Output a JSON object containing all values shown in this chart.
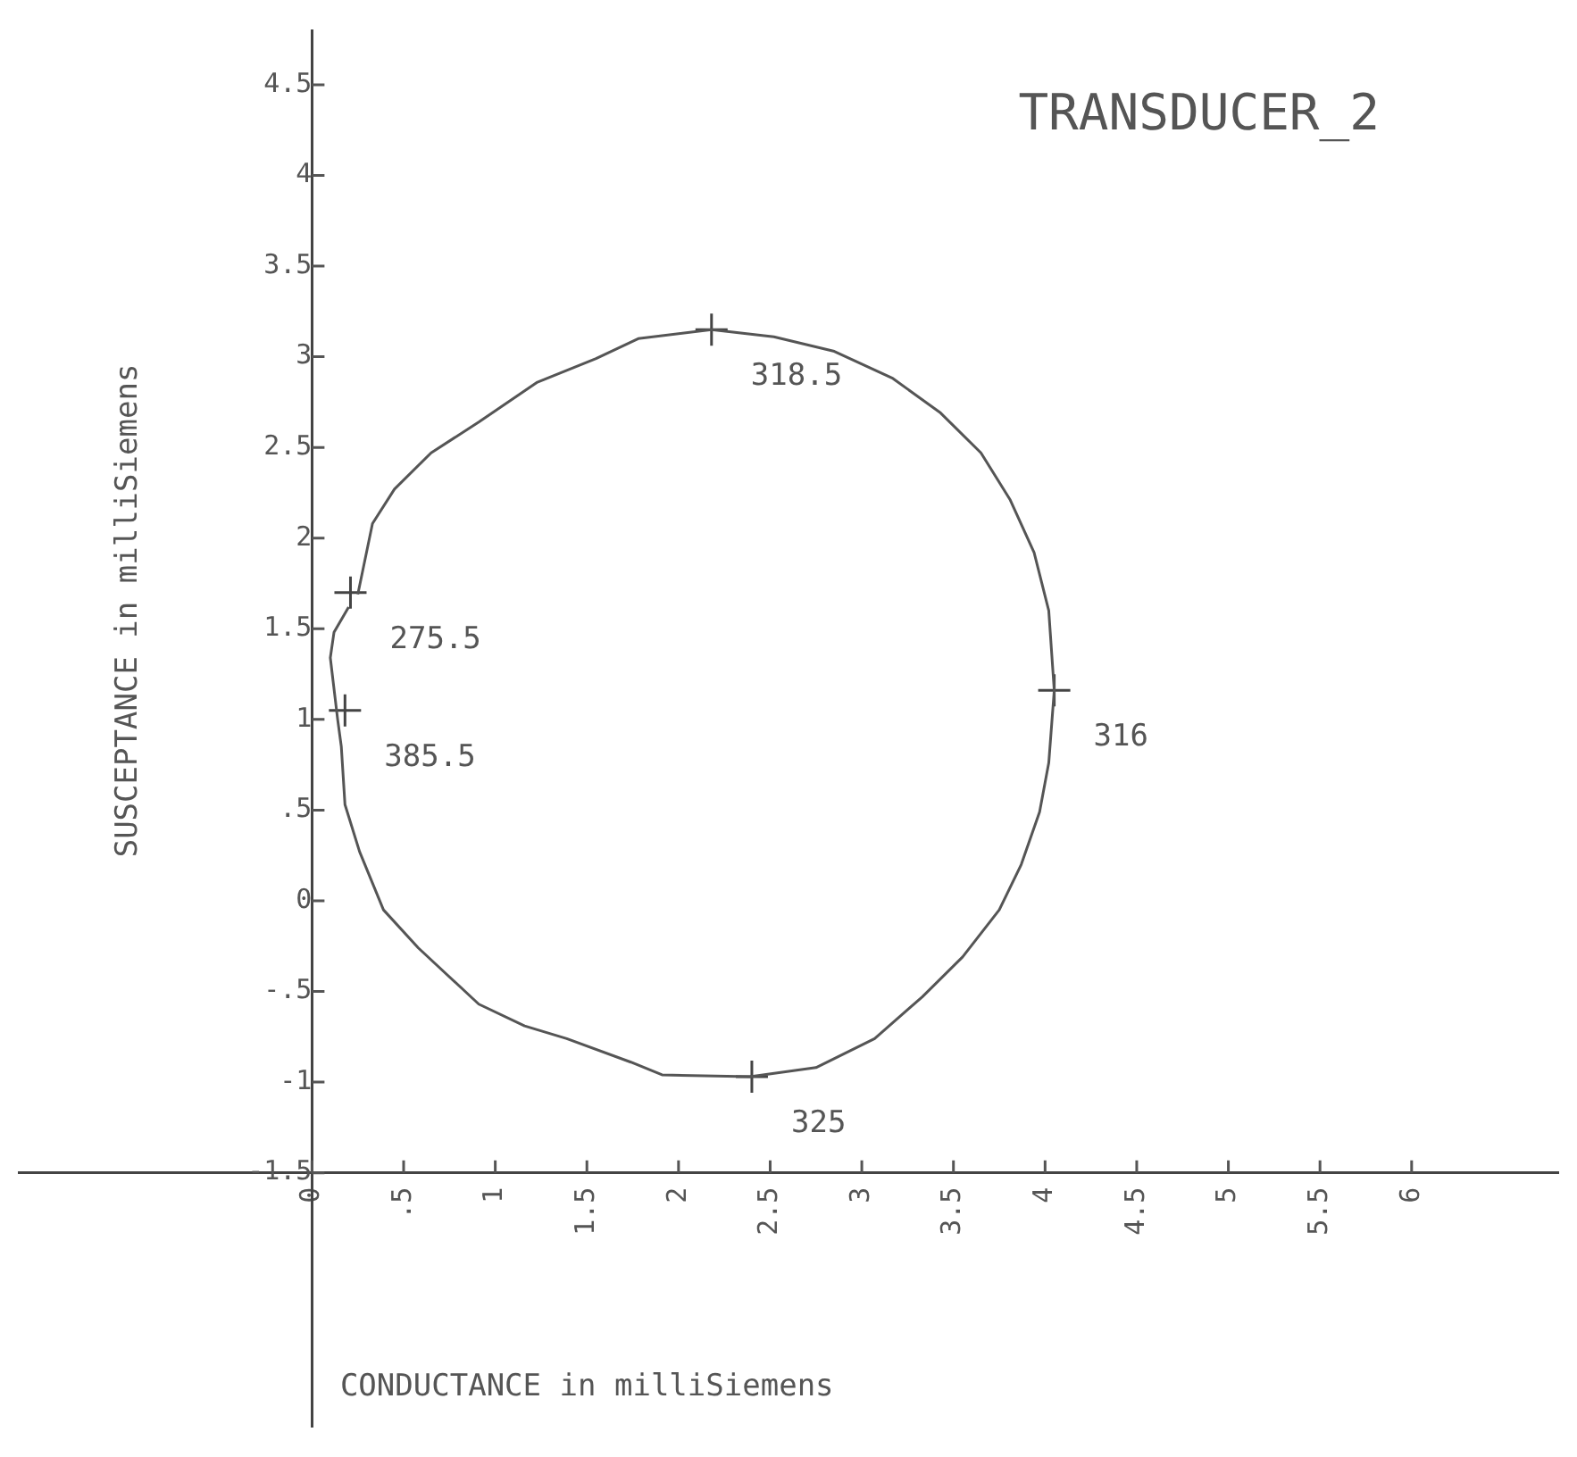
{
  "chart_data": {
    "type": "line",
    "title": "TRANSDUCER_2",
    "xlabel": "CONDUCTANCE in milliSiemens",
    "ylabel": "SUSCEPTANCE in milliSiemens",
    "xlim": [
      -1.6,
      6.8
    ],
    "ylim": [
      -2.9,
      4.8
    ],
    "xticks": [
      0,
      {
        "value": 0.5,
        "label": ".5"
      },
      1,
      1.5,
      2,
      2.5,
      3,
      3.5,
      4,
      4.5,
      5,
      5.5,
      6
    ],
    "yticks": [
      {
        "value": -1.5,
        "label": "-1.5"
      },
      -1,
      {
        "value": -0.5,
        "label": "-.5"
      },
      0,
      {
        "value": 0.5,
        "label": ".5"
      },
      1,
      1.5,
      2,
      2.5,
      3,
      3.5,
      4,
      4.5
    ],
    "series": [
      {
        "color": "#555555",
        "marker": "none",
        "x": [
          0.25,
          0.33,
          0.45,
          0.65,
          0.91,
          1.23,
          1.55,
          1.78,
          2.18,
          2.52,
          2.85,
          3.17,
          3.43,
          3.65,
          3.81,
          3.94,
          4.02,
          4.05,
          4.02,
          3.97,
          3.87,
          3.75,
          3.55,
          3.33,
          3.07,
          2.75,
          2.39,
          1.91,
          1.74,
          1.39,
          1.16,
          0.91,
          0.58,
          0.39,
          0.26,
          0.18,
          0.16,
          0.14,
          0.1,
          0.12,
          0.2
        ],
        "values": [
          1.69,
          2.08,
          2.27,
          2.47,
          2.64,
          2.86,
          2.99,
          3.1,
          3.15,
          3.11,
          3.03,
          2.88,
          2.69,
          2.47,
          2.21,
          1.92,
          1.6,
          1.16,
          0.76,
          0.49,
          0.2,
          -0.05,
          -0.31,
          -0.53,
          -0.76,
          -0.92,
          -0.97,
          -0.96,
          -0.89,
          -0.76,
          -0.69,
          -0.57,
          -0.26,
          -0.05,
          0.27,
          0.53,
          0.85,
          1.0,
          1.34,
          1.48,
          1.62
        ]
      },
      {
        "type": "scatter",
        "color": "#444444",
        "marker": "cross",
        "x": [
          0.21,
          0.18,
          2.18,
          4.05,
          2.4
        ],
        "values": [
          1.7,
          1.05,
          3.15,
          1.16,
          -0.97
        ]
      }
    ],
    "annotations": [
      {
        "text": "275.5",
        "x": 0.21,
        "y": 1.7
      },
      {
        "text": "385.5",
        "x": 0.18,
        "y": 1.05
      },
      {
        "text": "318.5",
        "x": 2.18,
        "y": 3.15
      },
      {
        "text": "316",
        "x": 4.05,
        "y": 1.16
      },
      {
        "text": "325",
        "x": 2.4,
        "y": -0.97
      }
    ]
  }
}
